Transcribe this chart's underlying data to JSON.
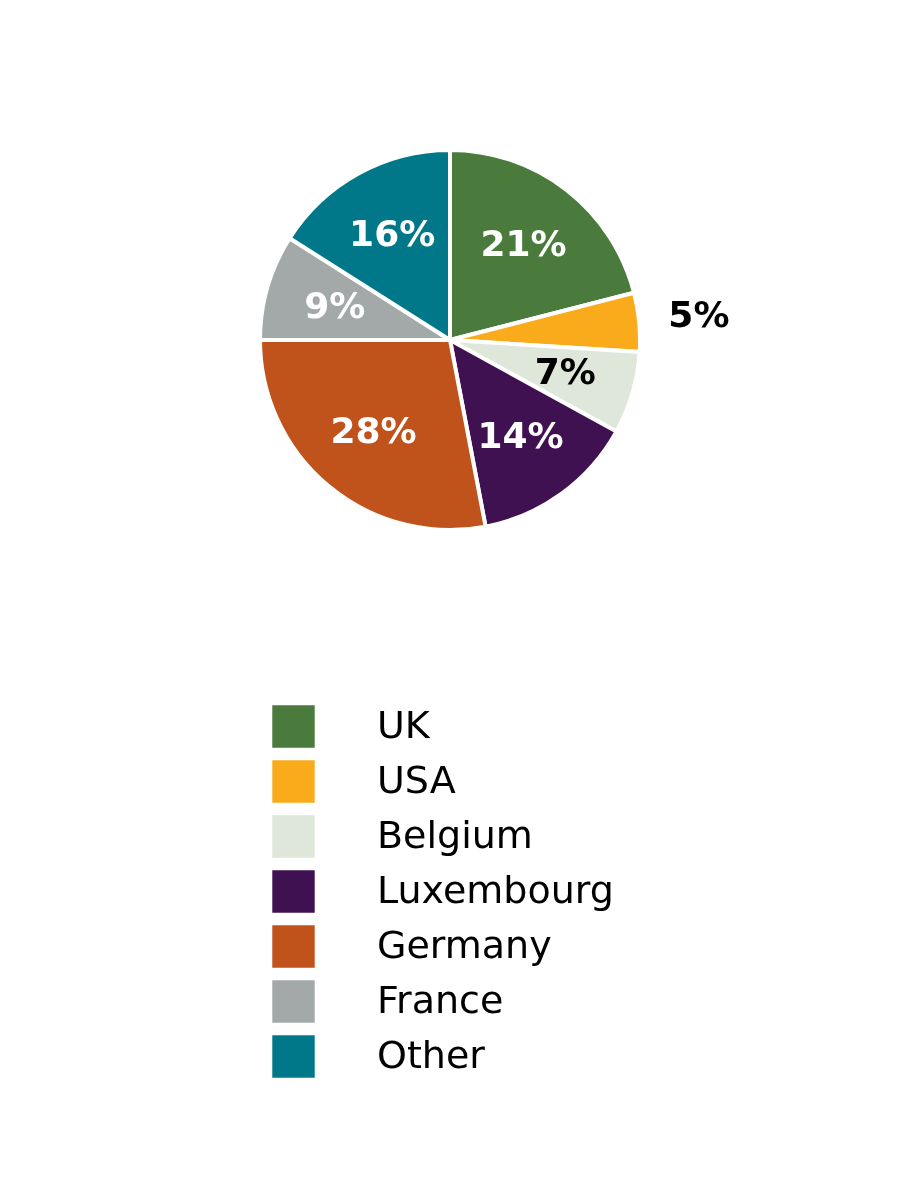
{
  "chart_data": {
    "type": "pie",
    "categories": [
      "UK",
      "USA",
      "Belgium",
      "Luxembourg",
      "Germany",
      "France",
      "Other"
    ],
    "values": [
      21,
      5,
      7,
      14,
      28,
      9,
      16
    ],
    "colors": [
      "#4a7a3c",
      "#f9ab1b",
      "#dfe6da",
      "#3f1150",
      "#c0531c",
      "#a3a8a8",
      "#00788a"
    ],
    "value_labels": [
      "21%",
      "5%",
      "7%",
      "14%",
      "28%",
      "9%",
      "16%"
    ],
    "legend": "bottom"
  }
}
